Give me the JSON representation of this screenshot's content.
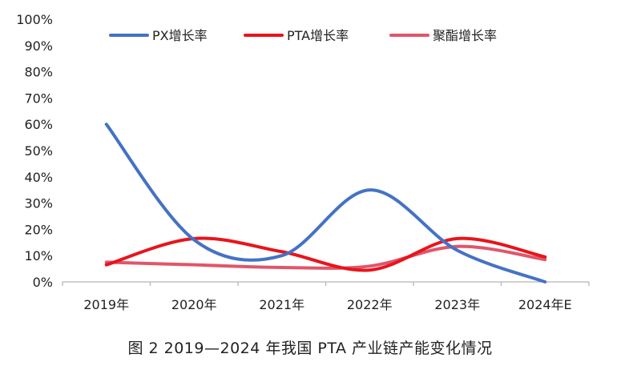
{
  "caption": "图 2  2019—2024 年我国 PTA 产业链产能变化情况",
  "chart_data": {
    "type": "line",
    "smooth": true,
    "categories": [
      "2019年",
      "2020年",
      "2021年",
      "2022年",
      "2023年",
      "2024年E"
    ],
    "ylim": [
      0,
      100
    ],
    "yticks": [
      0,
      10,
      20,
      30,
      40,
      50,
      60,
      70,
      80,
      90,
      100
    ],
    "ytick_labels": [
      "0%",
      "10%",
      "20%",
      "30%",
      "40%",
      "50%",
      "60%",
      "70%",
      "80%",
      "90%",
      "100%"
    ],
    "grid": false,
    "legend_position": "top",
    "series": [
      {
        "name": "PX增长率",
        "color": "#4472C4",
        "values": [
          60,
          16,
          10,
          35,
          12,
          0
        ]
      },
      {
        "name": "PTA增长率",
        "color": "#E8141C",
        "values": [
          6.5,
          16.5,
          11.5,
          4.5,
          16.5,
          9.5
        ]
      },
      {
        "name": "聚酯增长率",
        "color": "#E0566A",
        "values": [
          7.5,
          6.5,
          5.5,
          6,
          13.5,
          8.5
        ]
      }
    ]
  }
}
